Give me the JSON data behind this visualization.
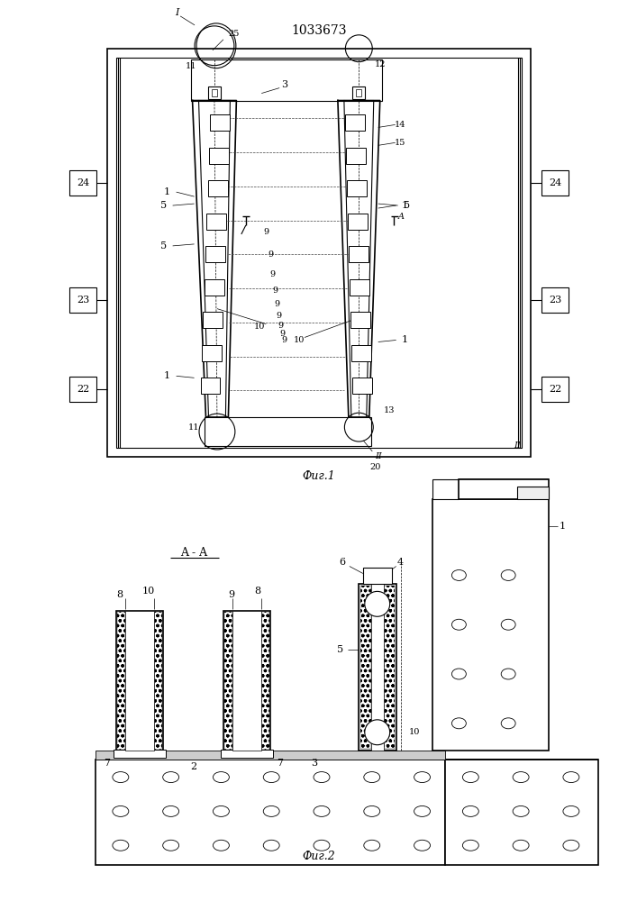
{
  "title": "1033673",
  "fig1_label": "Фиг.1",
  "fig2_label": "Фиг.2",
  "section_label": "A - A",
  "bg_color": "#ffffff",
  "line_color": "#000000"
}
